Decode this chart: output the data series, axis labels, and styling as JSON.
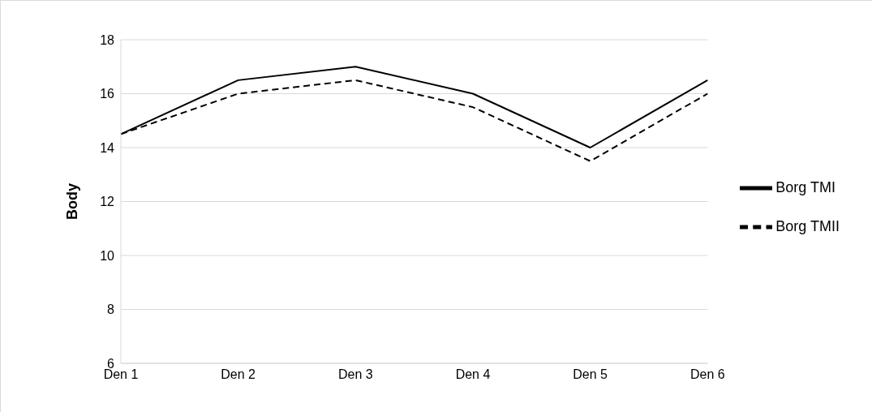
{
  "chart_data": {
    "type": "line",
    "ylabel": "Body",
    "categories": [
      "Den 1",
      "Den 2",
      "Den 3",
      "Den 4",
      "Den 5",
      "Den 6"
    ],
    "series": [
      {
        "name": "Borg TMI",
        "color": "#000000",
        "line_style": "solid",
        "values": [
          14.5,
          16.5,
          17,
          16,
          14,
          16.5
        ]
      },
      {
        "name": "Borg TMII",
        "color": "#000000",
        "line_style": "dashed",
        "values": [
          14.5,
          16,
          16.5,
          15.5,
          13.5,
          16
        ]
      }
    ],
    "ylim": [
      6,
      18
    ],
    "yticks": [
      6,
      8,
      10,
      12,
      14,
      16,
      18
    ],
    "grid": "y",
    "legend": "right",
    "marker": "none"
  }
}
